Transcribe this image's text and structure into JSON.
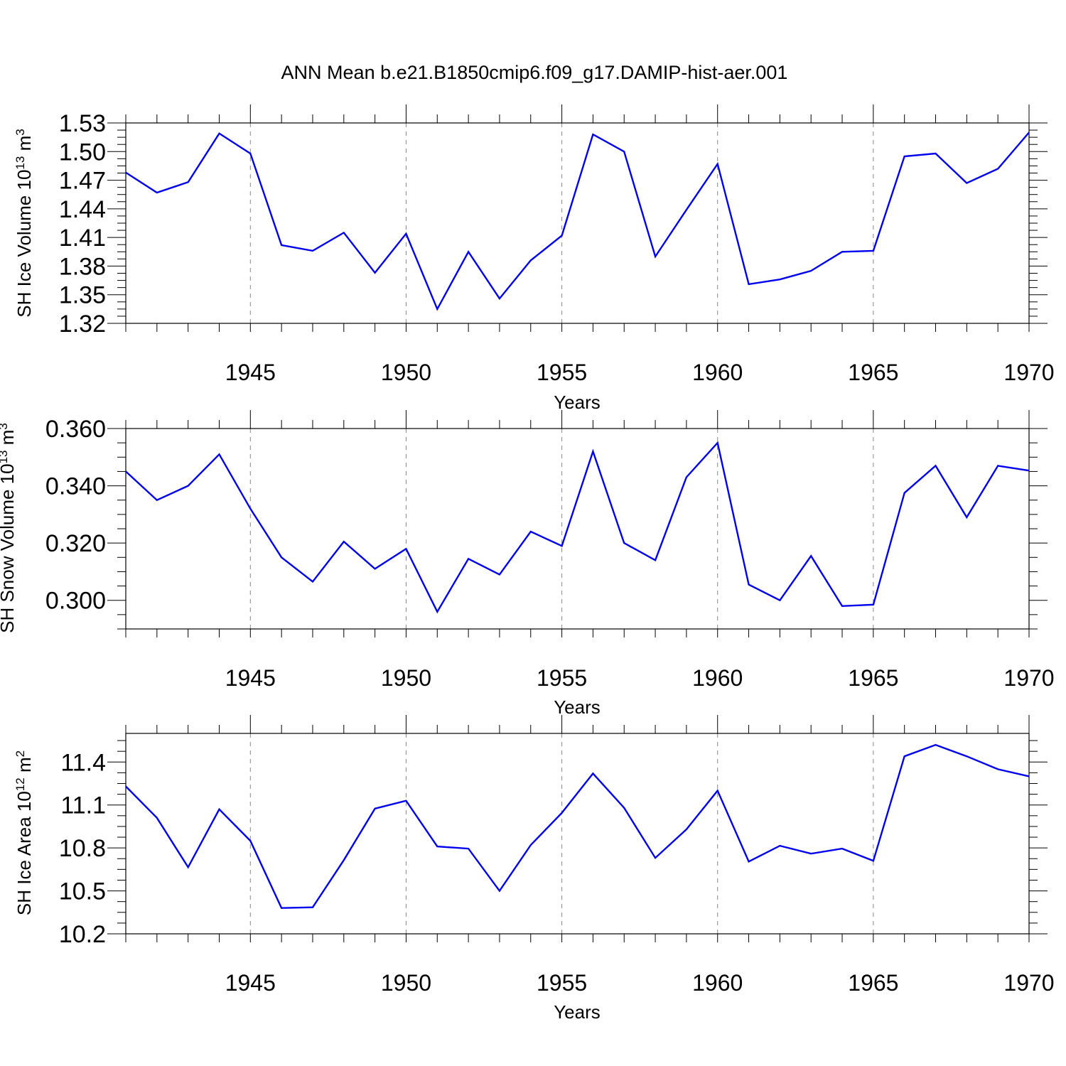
{
  "title": "ANN Mean b.e21.B1850cmip6.f09_g17.DAMIP-hist-aer.001",
  "line_color": "#0000ee",
  "chart_data": [
    {
      "type": "line",
      "ylabel": "SH Ice Volume 10",
      "ylabel_exp": "13",
      "ylabel_unit": " m",
      "ylabel_unit_exp": "3",
      "xlabel": "Years",
      "xlim": [
        1941,
        1970
      ],
      "ylim": [
        1.32,
        1.53
      ],
      "yticks": [
        1.32,
        1.35,
        1.38,
        1.41,
        1.44,
        1.47,
        1.5,
        1.53
      ],
      "ytick_labels": [
        "1.32",
        "1.35",
        "1.38",
        "1.41",
        "1.44",
        "1.47",
        "1.50",
        "1.53"
      ],
      "xticks": [
        1945,
        1950,
        1955,
        1960,
        1965,
        1970
      ],
      "xtick_labels": [
        "1945",
        "1950",
        "1955",
        "1960",
        "1965",
        "1970"
      ],
      "grid": "vertical dashed at major x ticks",
      "x": [
        1941,
        1942,
        1943,
        1944,
        1945,
        1946,
        1947,
        1948,
        1949,
        1950,
        1951,
        1952,
        1953,
        1954,
        1955,
        1956,
        1957,
        1958,
        1959,
        1960,
        1961,
        1962,
        1963,
        1964,
        1965,
        1966,
        1967,
        1968,
        1969,
        1970
      ],
      "series": [
        {
          "values": [
            1.478,
            1.457,
            1.468,
            1.519,
            1.498,
            1.402,
            1.396,
            1.415,
            1.373,
            1.414,
            1.335,
            1.395,
            1.346,
            1.386,
            1.412,
            1.518,
            1.5,
            1.39,
            1.439,
            1.487,
            1.361,
            1.366,
            1.375,
            1.395,
            1.396,
            1.495,
            1.498,
            1.467,
            1.482,
            1.52
          ]
        }
      ]
    },
    {
      "type": "line",
      "ylabel": "SH Snow Volume 10",
      "ylabel_exp": "13",
      "ylabel_unit": " m",
      "ylabel_unit_exp": "3",
      "xlabel": "Years",
      "xlim": [
        1941,
        1970
      ],
      "ylim": [
        0.29,
        0.36
      ],
      "yticks": [
        0.3,
        0.32,
        0.34,
        0.36
      ],
      "ytick_labels": [
        "0.300",
        "0.320",
        "0.340",
        "0.360"
      ],
      "xticks": [
        1945,
        1950,
        1955,
        1960,
        1965,
        1970
      ],
      "xtick_labels": [
        "1945",
        "1950",
        "1955",
        "1960",
        "1965",
        "1970"
      ],
      "grid": "vertical dashed at major x ticks",
      "x": [
        1941,
        1942,
        1943,
        1944,
        1945,
        1946,
        1947,
        1948,
        1949,
        1950,
        1951,
        1952,
        1953,
        1954,
        1955,
        1956,
        1957,
        1958,
        1959,
        1960,
        1961,
        1962,
        1963,
        1964,
        1965,
        1966,
        1967,
        1968,
        1969,
        1970
      ],
      "series": [
        {
          "values": [
            0.345,
            0.335,
            0.34,
            0.351,
            0.332,
            0.315,
            0.3065,
            0.3205,
            0.311,
            0.318,
            0.296,
            0.3145,
            0.309,
            0.324,
            0.319,
            0.352,
            0.32,
            0.314,
            0.343,
            0.355,
            0.3055,
            0.3,
            0.3155,
            0.298,
            0.2985,
            0.3375,
            0.347,
            0.329,
            0.347,
            0.3453
          ]
        }
      ]
    },
    {
      "type": "line",
      "ylabel": "SH Ice Area 10",
      "ylabel_exp": "12",
      "ylabel_unit": " m",
      "ylabel_unit_exp": "2",
      "xlabel": "Years",
      "xlim": [
        1941,
        1970
      ],
      "ylim": [
        10.2,
        11.6
      ],
      "yticks": [
        10.2,
        10.5,
        10.8,
        11.1,
        11.4
      ],
      "ytick_labels": [
        "10.2",
        "10.5",
        "10.8",
        "11.1",
        "11.4"
      ],
      "xticks": [
        1945,
        1950,
        1955,
        1960,
        1965,
        1970
      ],
      "xtick_labels": [
        "1945",
        "1950",
        "1955",
        "1960",
        "1965",
        "1970"
      ],
      "grid": "vertical dashed at major x ticks",
      "x": [
        1941,
        1942,
        1943,
        1944,
        1945,
        1946,
        1947,
        1948,
        1949,
        1950,
        1951,
        1952,
        1953,
        1954,
        1955,
        1956,
        1957,
        1958,
        1959,
        1960,
        1961,
        1962,
        1963,
        1964,
        1965,
        1966,
        1967,
        1968,
        1969,
        1970
      ],
      "series": [
        {
          "values": [
            11.23,
            11.01,
            10.665,
            11.07,
            10.85,
            10.38,
            10.385,
            10.715,
            11.075,
            11.13,
            10.81,
            10.795,
            10.5,
            10.82,
            11.045,
            11.32,
            11.08,
            10.73,
            10.93,
            11.2,
            10.705,
            10.815,
            10.76,
            10.795,
            10.71,
            11.44,
            11.52,
            11.44,
            11.35,
            11.3
          ]
        }
      ]
    }
  ]
}
